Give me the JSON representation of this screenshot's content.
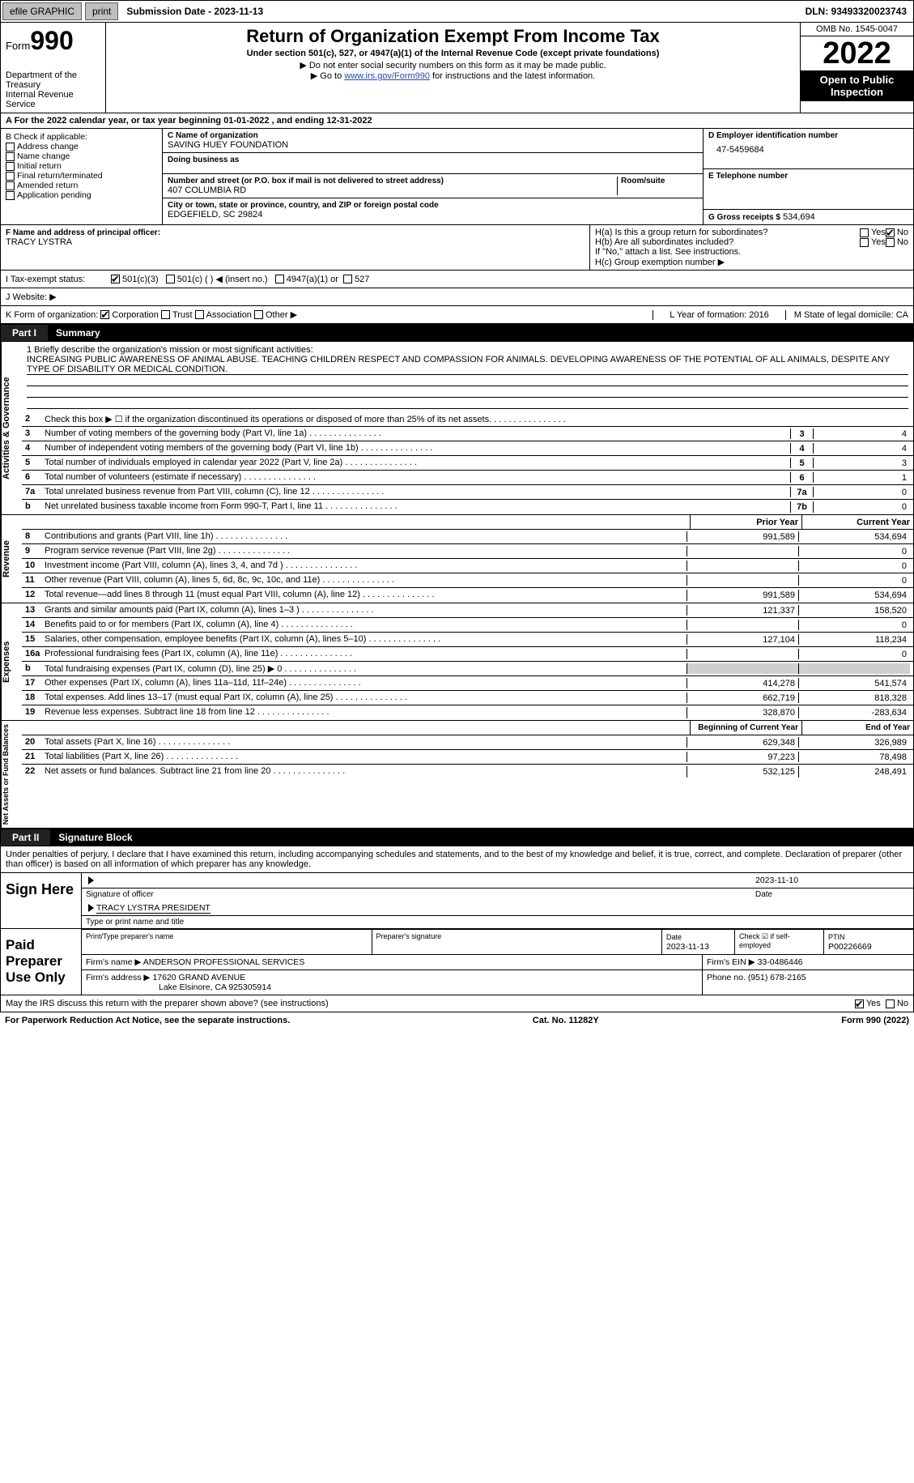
{
  "topbar": {
    "efile": "efile GRAPHIC",
    "print": "print",
    "submission": "Submission Date - 2023-11-13",
    "dln": "DLN: 93493320023743"
  },
  "header": {
    "form_label": "Form",
    "form_no": "990",
    "dept": "Department of the Treasury\nInternal Revenue Service",
    "title": "Return of Organization Exempt From Income Tax",
    "sub1": "Under section 501(c), 527, or 4947(a)(1) of the Internal Revenue Code (except private foundations)",
    "sub2": "▶ Do not enter social security numbers on this form as it may be made public.",
    "sub3_pre": "▶ Go to ",
    "sub3_link": "www.irs.gov/Form990",
    "sub3_post": " for instructions and the latest information.",
    "omb": "OMB No. 1545-0047",
    "year": "2022",
    "otp": "Open to Public Inspection"
  },
  "period": "A For the 2022 calendar year, or tax year beginning 01-01-2022     , and ending 12-31-2022",
  "B": {
    "label": "B Check if applicable:",
    "items": [
      "Address change",
      "Name change",
      "Initial return",
      "Final return/terminated",
      "Amended return",
      "Application pending"
    ]
  },
  "C": {
    "name_lbl": "C Name of organization",
    "name": "SAVING HUEY FOUNDATION",
    "dba": "Doing business as",
    "addr_lbl": "Number and street (or P.O. box if mail is not delivered to street address)",
    "addr": "407 COLUMBIA RD",
    "room_lbl": "Room/suite",
    "city_lbl": "City or town, state or province, country, and ZIP or foreign postal code",
    "city": "EDGEFIELD, SC  29824"
  },
  "D": {
    "lbl": "D Employer identification number",
    "val": "47-5459684"
  },
  "E": {
    "lbl": "E Telephone number",
    "val": ""
  },
  "G": {
    "lbl": "G Gross receipts $",
    "val": "534,694"
  },
  "F": {
    "lbl": "F  Name and address of principal officer:",
    "val": "TRACY LYSTRA"
  },
  "H": {
    "a": "H(a)  Is this a group return for subordinates?",
    "b": "H(b)  Are all subordinates included?",
    "note": "If \"No,\" attach a list. See instructions.",
    "c": "H(c)  Group exemption number ▶"
  },
  "I": {
    "lbl": "I   Tax-exempt status:",
    "opts": [
      "501(c)(3)",
      "501(c) (  ) ◀ (insert no.)",
      "4947(a)(1) or",
      "527"
    ]
  },
  "J": "J   Website: ▶",
  "K": {
    "lbl": "K Form of organization:",
    "opts": [
      "Corporation",
      "Trust",
      "Association",
      "Other ▶"
    ]
  },
  "L": "L Year of formation: 2016",
  "M": "M State of legal domicile: CA",
  "part1": {
    "num": "Part I",
    "title": "Summary"
  },
  "mission": {
    "lbl": "1   Briefly describe the organization's mission or most significant activities:",
    "text": "INCREASING PUBLIC AWARENESS OF ANIMAL ABUSE. TEACHING CHILDREN RESPECT AND COMPASSION FOR ANIMALS. DEVELOPING AWARENESS OF THE POTENTIAL OF ALL ANIMALS, DESPITE ANY TYPE OF DISABILITY OR MEDICAL CONDITION."
  },
  "sections": {
    "gov": {
      "label": "Activities & Governance",
      "lines": [
        {
          "n": "2",
          "t": "Check this box ▶ ☐  if the organization discontinued its operations or disposed of more than 25% of its net assets.",
          "box": "",
          "v": ""
        },
        {
          "n": "3",
          "t": "Number of voting members of the governing body (Part VI, line 1a)",
          "box": "3",
          "v": "4"
        },
        {
          "n": "4",
          "t": "Number of independent voting members of the governing body (Part VI, line 1b)",
          "box": "4",
          "v": "4"
        },
        {
          "n": "5",
          "t": "Total number of individuals employed in calendar year 2022 (Part V, line 2a)",
          "box": "5",
          "v": "3"
        },
        {
          "n": "6",
          "t": "Total number of volunteers (estimate if necessary)",
          "box": "6",
          "v": "1"
        },
        {
          "n": "7a",
          "t": "Total unrelated business revenue from Part VIII, column (C), line 12",
          "box": "7a",
          "v": "0"
        },
        {
          "n": "b",
          "t": "Net unrelated business taxable income from Form 990-T, Part I, line 11",
          "box": "7b",
          "v": "0"
        }
      ]
    },
    "rev": {
      "label": "Revenue",
      "header": {
        "py": "Prior Year",
        "cy": "Current Year"
      },
      "lines": [
        {
          "n": "8",
          "t": "Contributions and grants (Part VIII, line 1h)",
          "py": "991,589",
          "cy": "534,694"
        },
        {
          "n": "9",
          "t": "Program service revenue (Part VIII, line 2g)",
          "py": "",
          "cy": "0"
        },
        {
          "n": "10",
          "t": "Investment income (Part VIII, column (A), lines 3, 4, and 7d )",
          "py": "",
          "cy": "0"
        },
        {
          "n": "11",
          "t": "Other revenue (Part VIII, column (A), lines 5, 6d, 8c, 9c, 10c, and 11e)",
          "py": "",
          "cy": "0"
        },
        {
          "n": "12",
          "t": "Total revenue—add lines 8 through 11 (must equal Part VIII, column (A), line 12)",
          "py": "991,589",
          "cy": "534,694"
        }
      ]
    },
    "exp": {
      "label": "Expenses",
      "lines": [
        {
          "n": "13",
          "t": "Grants and similar amounts paid (Part IX, column (A), lines 1–3 )",
          "py": "121,337",
          "cy": "158,520"
        },
        {
          "n": "14",
          "t": "Benefits paid to or for members (Part IX, column (A), line 4)",
          "py": "",
          "cy": "0"
        },
        {
          "n": "15",
          "t": "Salaries, other compensation, employee benefits (Part IX, column (A), lines 5–10)",
          "py": "127,104",
          "cy": "118,234"
        },
        {
          "n": "16a",
          "t": "Professional fundraising fees (Part IX, column (A), line 11e)",
          "py": "",
          "cy": "0"
        },
        {
          "n": "b",
          "t": "Total fundraising expenses (Part IX, column (D), line 25) ▶ 0",
          "py": "shade",
          "cy": "shade"
        },
        {
          "n": "17",
          "t": "Other expenses (Part IX, column (A), lines 11a–11d, 11f–24e)",
          "py": "414,278",
          "cy": "541,574"
        },
        {
          "n": "18",
          "t": "Total expenses. Add lines 13–17 (must equal Part IX, column (A), line 25)",
          "py": "662,719",
          "cy": "818,328"
        },
        {
          "n": "19",
          "t": "Revenue less expenses. Subtract line 18 from line 12",
          "py": "328,870",
          "cy": "-283,634"
        }
      ]
    },
    "net": {
      "label": "Net Assets or Fund Balances",
      "header": {
        "py": "Beginning of Current Year",
        "cy": "End of Year"
      },
      "lines": [
        {
          "n": "20",
          "t": "Total assets (Part X, line 16)",
          "py": "629,348",
          "cy": "326,989"
        },
        {
          "n": "21",
          "t": "Total liabilities (Part X, line 26)",
          "py": "97,223",
          "cy": "78,498"
        },
        {
          "n": "22",
          "t": "Net assets or fund balances. Subtract line 21 from line 20",
          "py": "532,125",
          "cy": "248,491"
        }
      ]
    }
  },
  "part2": {
    "num": "Part II",
    "title": "Signature Block"
  },
  "penalty": "Under penalties of perjury, I declare that I have examined this return, including accompanying schedules and statements, and to the best of my knowledge and belief, it is true, correct, and complete. Declaration of preparer (other than officer) is based on all information of which preparer has any knowledge.",
  "sign": {
    "lbl": "Sign Here",
    "date": "2023-11-10",
    "sig_of": "Signature of officer",
    "date_lbl": "Date",
    "name": "TRACY LYSTRA  PRESIDENT",
    "name_lbl": "Type or print name and title"
  },
  "prep": {
    "lbl": "Paid Preparer Use Only",
    "h": {
      "p1": "Print/Type preparer's name",
      "p2": "Preparer's signature",
      "p3": "Date",
      "p3v": "2023-11-13",
      "p4": "Check ☑ if self-employed",
      "p5": "PTIN",
      "p5v": "P00226669"
    },
    "firm_lbl": "Firm's name   ▶",
    "firm": "ANDERSON PROFESSIONAL SERVICES",
    "ein_lbl": "Firm's EIN ▶",
    "ein": "33-0486446",
    "addr_lbl": "Firm's address ▶",
    "addr": "17620 GRAND AVENUE",
    "addr2": "Lake Elsinore, CA  925305914",
    "phone_lbl": "Phone no.",
    "phone": "(951) 678-2165"
  },
  "discuss": "May the IRS discuss this return with the preparer shown above? (see instructions)",
  "yes": "Yes",
  "no": "No",
  "footer": {
    "pra": "For Paperwork Reduction Act Notice, see the separate instructions.",
    "cat": "Cat. No. 11282Y",
    "form": "Form 990 (2022)"
  }
}
